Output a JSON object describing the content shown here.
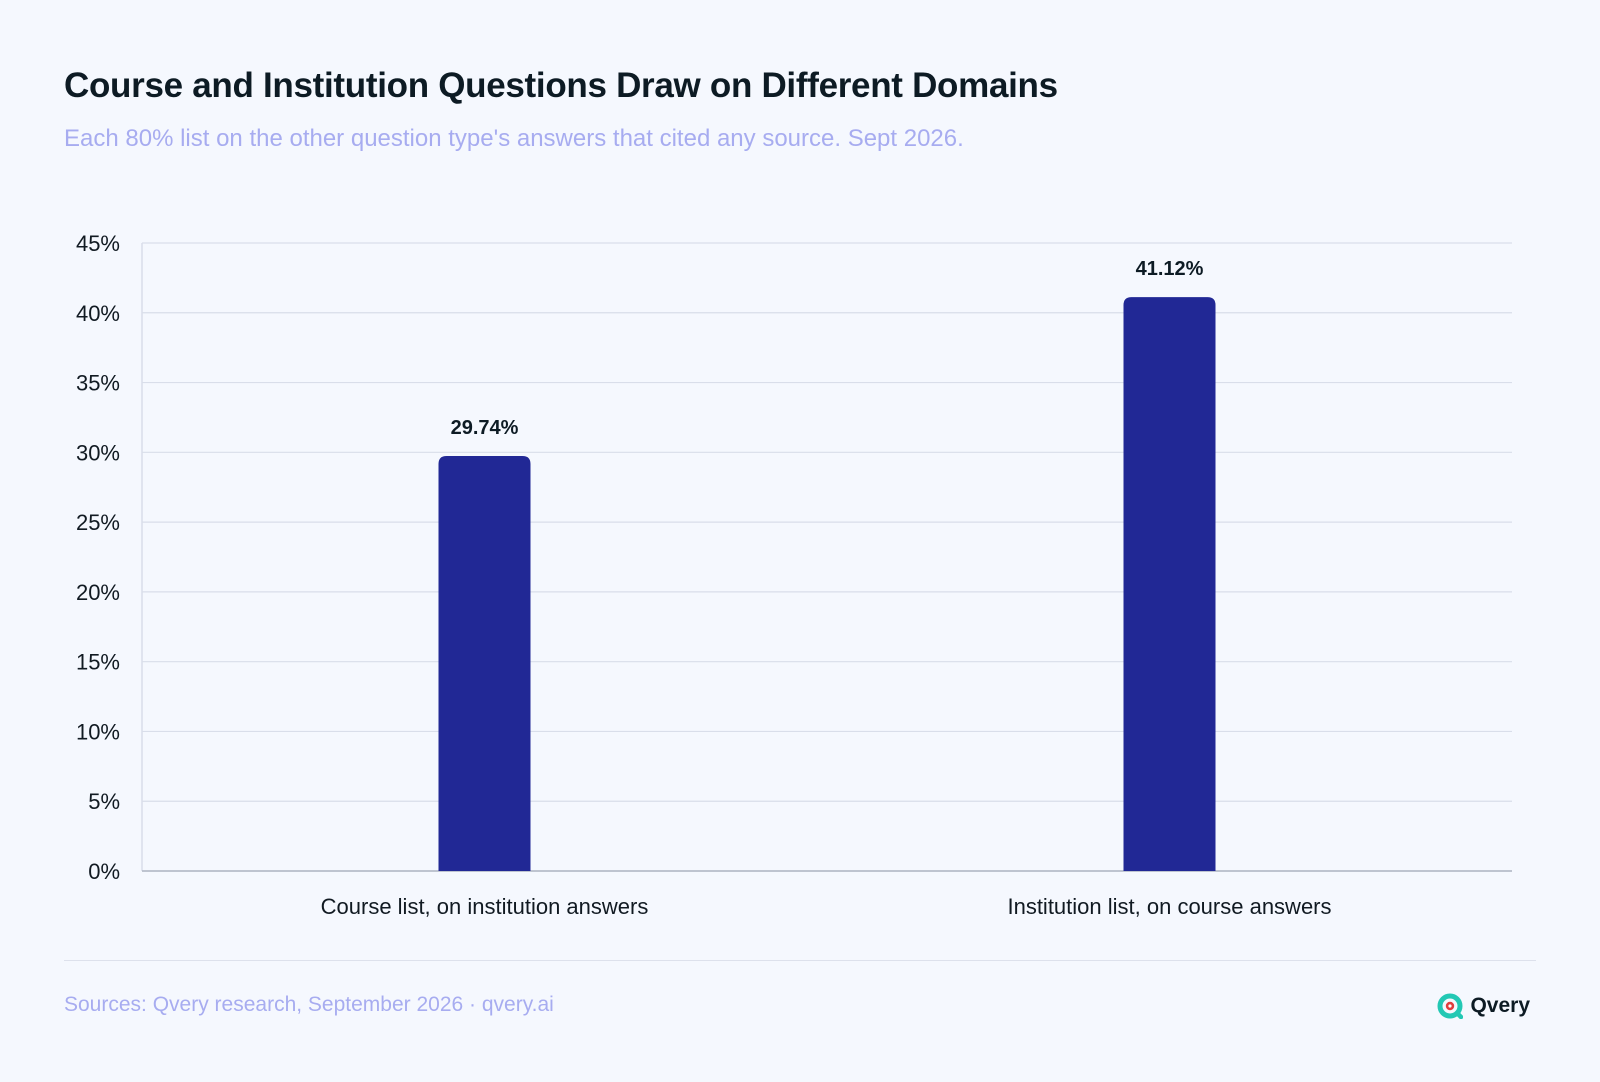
{
  "title": "Course and Institution Questions Draw on Different Domains",
  "subtitle": "Each 80% list on the other question type's answers that cited any source. Sept 2026.",
  "footer": {
    "source": "Sources: Qvery research, September 2026 · qvery.ai",
    "brand_name": "Qvery",
    "brand_icon": "qvery-logo-icon"
  },
  "colors": {
    "bar": "#212895",
    "grid": "#d9deea",
    "axis": "#b6bcca",
    "title": "#0d1b24",
    "subtitle": "#a7acf0",
    "background": "#f5f8fe",
    "brand_teal": "#23c8b4",
    "brand_red": "#e23d3d"
  },
  "chart_data": {
    "type": "bar",
    "categories": [
      "Course list, on institution answers",
      "Institution list, on course answers"
    ],
    "values": [
      29.74,
      41.12
    ],
    "value_labels": [
      "29.74%",
      "41.12%"
    ],
    "ylim": [
      0,
      45
    ],
    "yticks": [
      0,
      5,
      10,
      15,
      20,
      25,
      30,
      35,
      40,
      45
    ],
    "ytick_labels": [
      "0%",
      "5%",
      "10%",
      "15%",
      "20%",
      "25%",
      "30%",
      "35%",
      "40%",
      "45%"
    ],
    "grid": true,
    "legend": "none"
  }
}
